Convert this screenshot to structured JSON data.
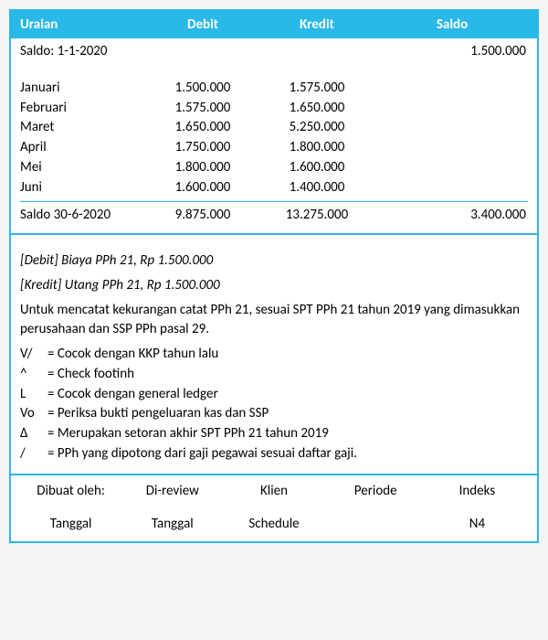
{
  "colors": {
    "accent": "#29b8e8",
    "text": "#000000",
    "bg": "#ffffff"
  },
  "header": {
    "uraian": "Uraian",
    "debit": "Debit",
    "kredit": "Kredit",
    "saldo": "Saldo"
  },
  "opening": {
    "label": "Saldo: 1-1-2020",
    "saldo": "1.500.000"
  },
  "months": [
    {
      "name": "Januari",
      "debit": "1.500.000",
      "kredit": "1.575.000"
    },
    {
      "name": "Februari",
      "debit": "1.575.000",
      "kredit": "1.650.000"
    },
    {
      "name": "Maret",
      "debit": "1.650.000",
      "kredit": "5.250.000"
    },
    {
      "name": "April",
      "debit": "1.750.000",
      "kredit": "1.800.000"
    },
    {
      "name": "Mei",
      "debit": "1.800.000",
      "kredit": "1.600.000"
    },
    {
      "name": "Juni",
      "debit": "1.600.000",
      "kredit": "1.400.000"
    }
  ],
  "closing": {
    "label": "Saldo 30-6-2020",
    "debit": "9.875.000",
    "kredit": "13.275.000",
    "saldo": "3.400.000"
  },
  "journal": {
    "debit_line": "[Debit] Biaya PPh 21, Rp 1.500.000",
    "kredit_line": "[Kredit] Utang PPh 21, Rp 1.500.000"
  },
  "paragraph": "Untuk mencatat kekurangan catat PPh 21, sesuai SPT PPh 21 tahun 2019 yang dimasukkan perusahaan dan SSP PPh pasal 29.",
  "legend": [
    {
      "sym": "V/",
      "txt": "= Cocok dengan KKP tahun lalu"
    },
    {
      "sym": "^",
      "txt": "= Check footinh"
    },
    {
      "sym": "L",
      "txt": "= Cocok dengan general ledger"
    },
    {
      "sym": "Vo",
      "txt": "= Periksa bukti pengeluaran kas dan SSP"
    },
    {
      "sym": "Δ",
      "txt": "= Merupakan setoran akhir SPT PPh 21 tahun 2019"
    },
    {
      "sym": "/",
      "txt": "= PPh yang dipotong dari gaji pegawai sesuai daftar gaji."
    }
  ],
  "footer": {
    "row1": {
      "c1": "Dibuat oleh:",
      "c2": "Di-review",
      "c3": "Klien",
      "c4": "Periode",
      "c5": "Indeks"
    },
    "row2": {
      "c1": "Tanggal",
      "c2": "Tanggal",
      "c3": "Schedule",
      "c4": "",
      "c5": "N4"
    }
  }
}
